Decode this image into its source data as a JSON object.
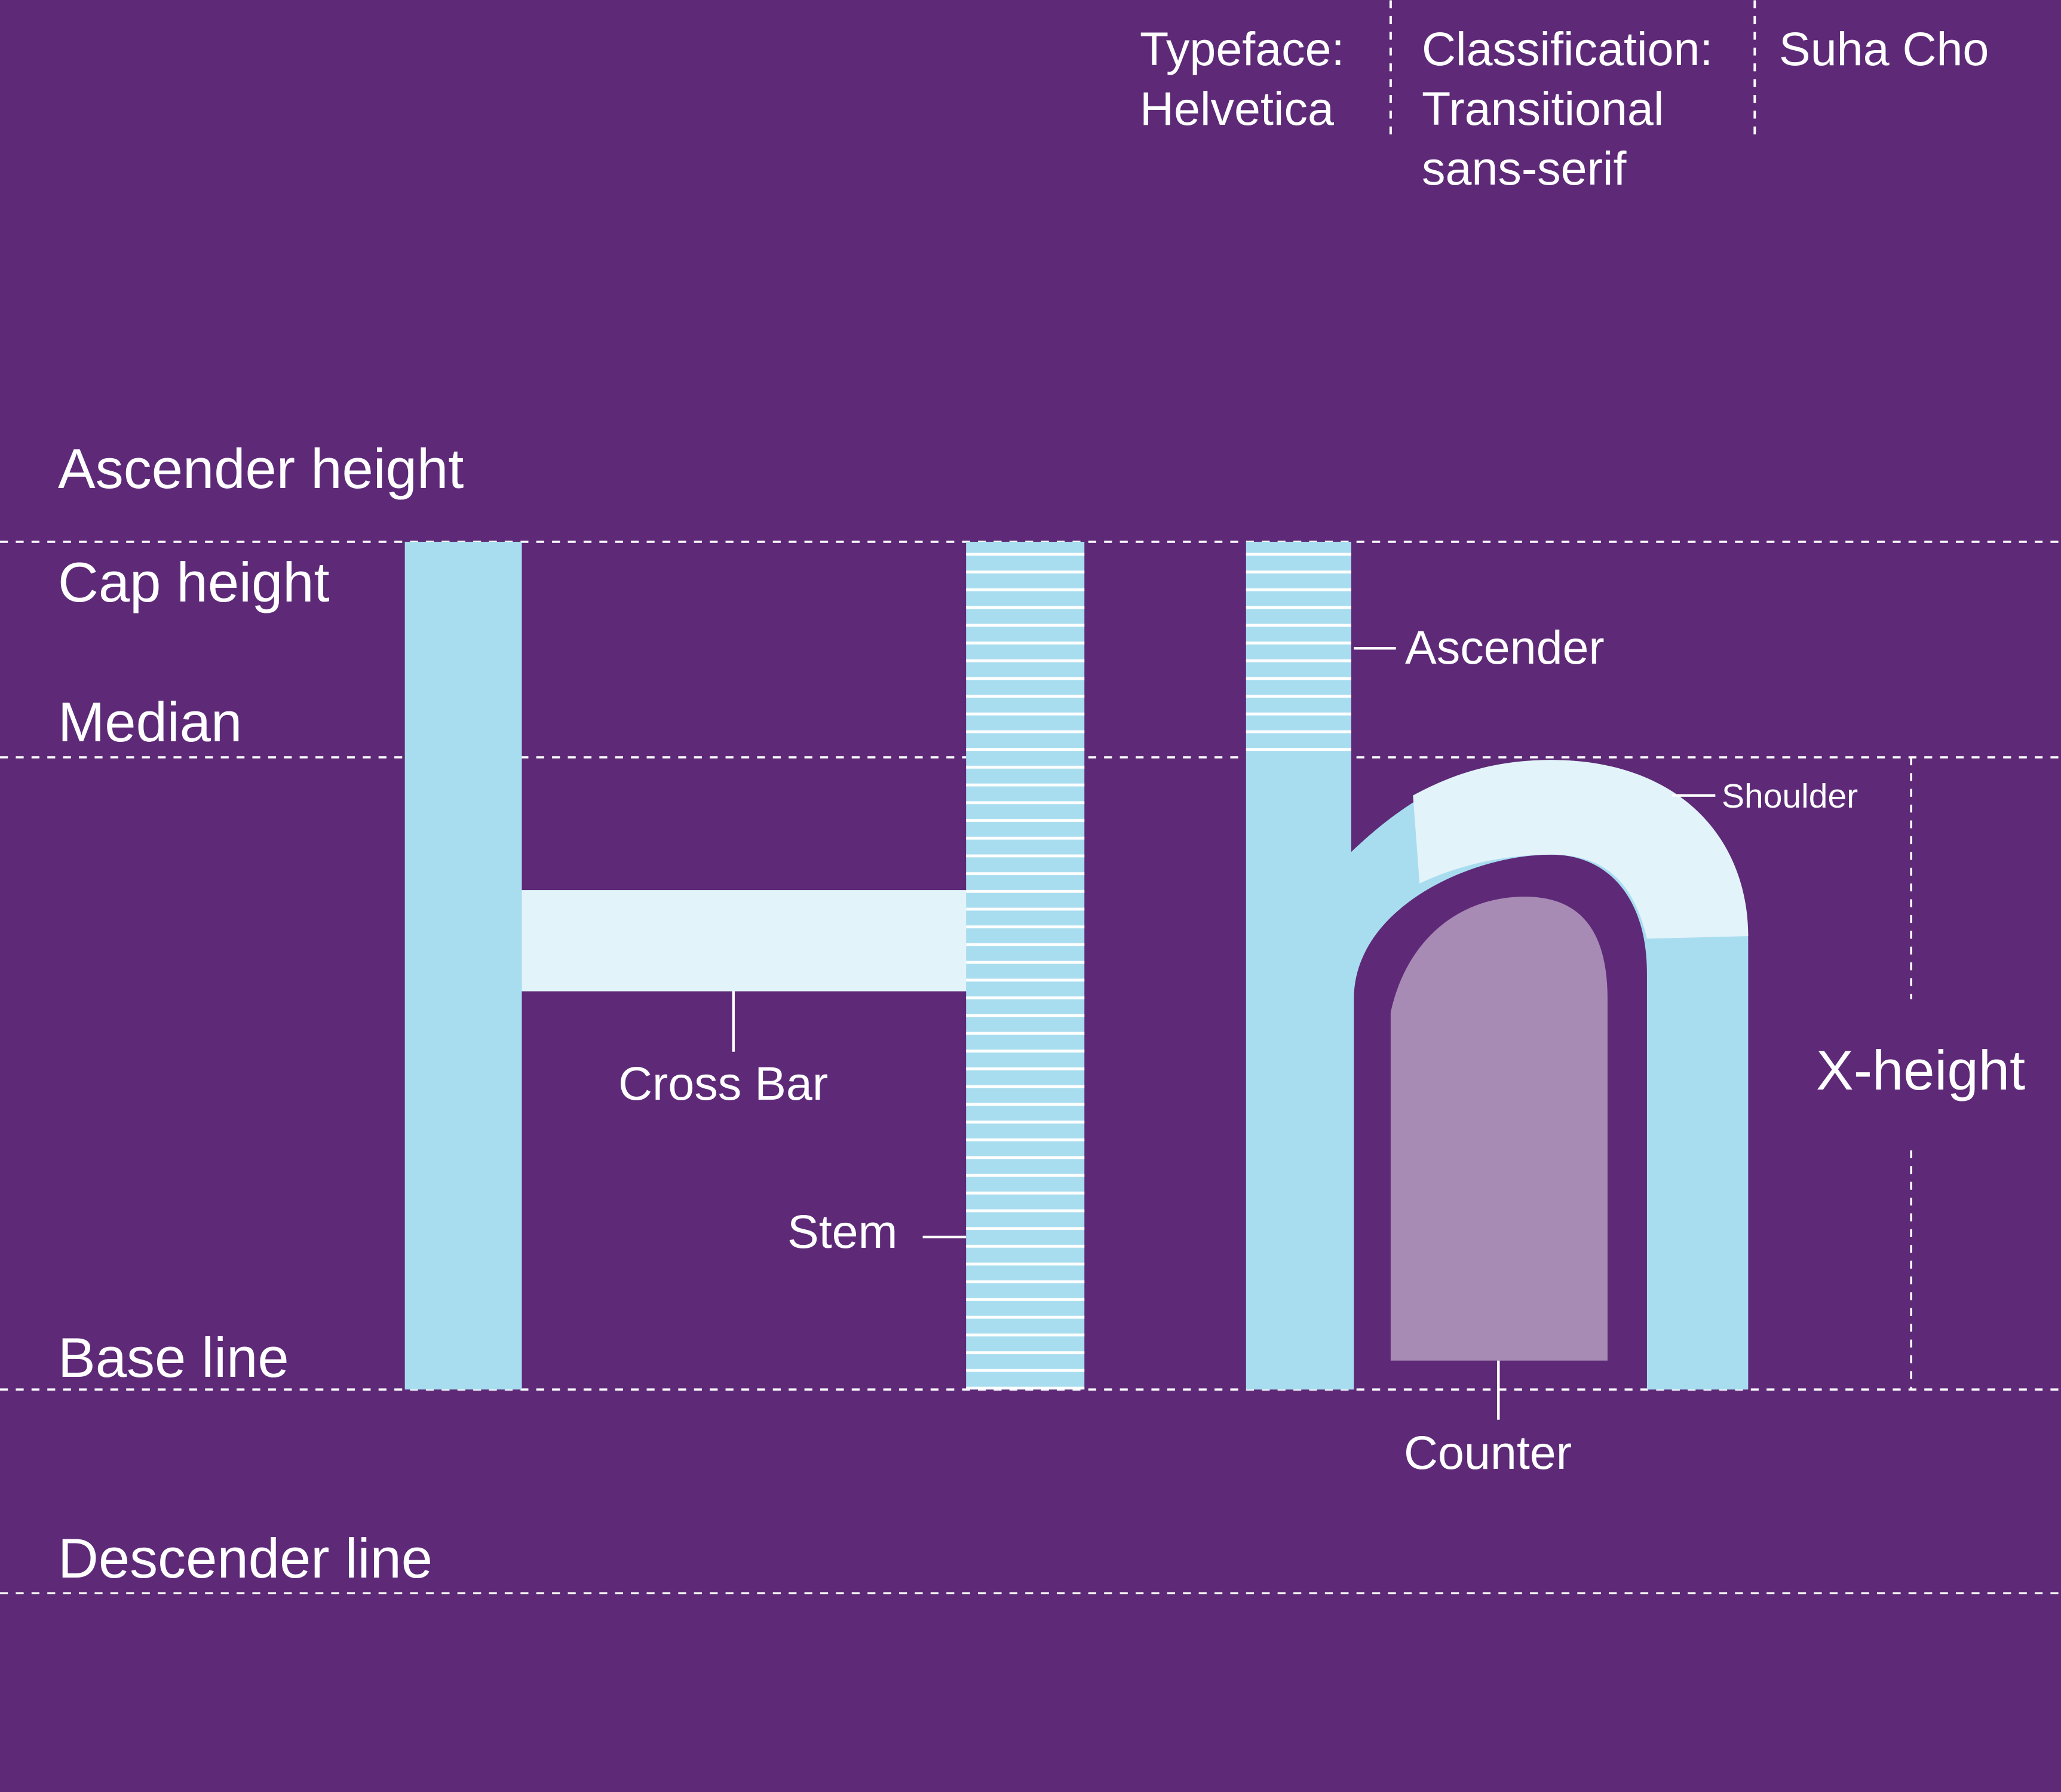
{
  "colors": {
    "background": "#5e2a78",
    "stem_fill": "#a8ddef",
    "light_fill": "#e2f3f9",
    "counter_fill": "#a88bb4",
    "guide_line": "#ffffff"
  },
  "header": {
    "typeface": "Typeface:\nHelvetica",
    "classification": "Classification:\nTransitional\nsans-serif",
    "author": "Suha Cho"
  },
  "guidelines": {
    "ascender_height": "Ascender height",
    "cap_height": "Cap height",
    "median": "Median",
    "base_line": "Base line",
    "descender_line": "Descender line"
  },
  "parts": {
    "cross_bar": "Cross Bar",
    "stem": "Stem",
    "ascender": "Ascender",
    "shoulder": "Shoulder",
    "counter": "Counter",
    "x_height": "X-height"
  },
  "glyphs": [
    "H",
    "h"
  ]
}
